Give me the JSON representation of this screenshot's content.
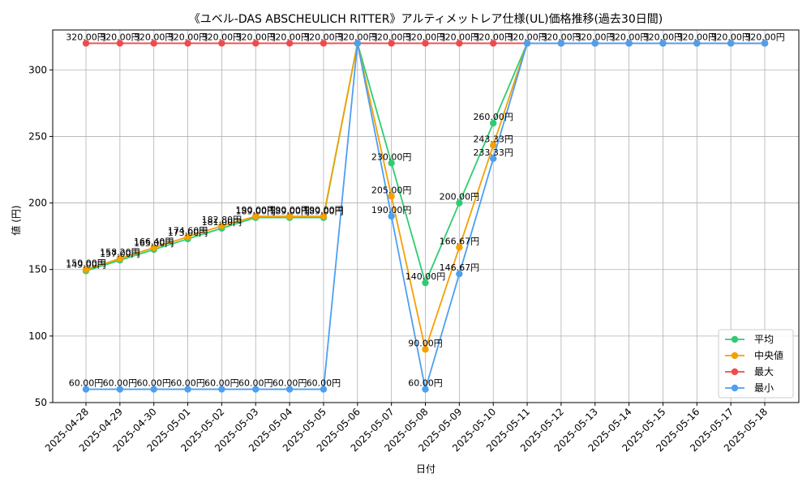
{
  "chart_data": {
    "type": "line",
    "title": "《ユベル-DAS ABSCHEULICH RITTER》アルティメットレア仕様(UL)価格推移(過去30日間)",
    "xlabel": "日付",
    "ylabel": "値 (円)",
    "ylim": [
      50,
      330
    ],
    "yticks": [
      50,
      100,
      150,
      200,
      250,
      300
    ],
    "grid": true,
    "legend_position": "lower-right",
    "categories": [
      "2025-04-28",
      "2025-04-29",
      "2025-04-30",
      "2025-05-01",
      "2025-05-02",
      "2025-05-03",
      "2025-05-04",
      "2025-05-05",
      "2025-05-06",
      "2025-05-07",
      "2025-05-08",
      "2025-05-09",
      "2025-05-10",
      "2025-05-11",
      "2025-05-12",
      "2025-05-13",
      "2025-05-14",
      "2025-05-15",
      "2025-05-16",
      "2025-05-17",
      "2025-05-18"
    ],
    "series": [
      {
        "name": "平均",
        "color": "#2ecc71",
        "values": [
          149,
          157,
          165,
          173,
          181,
          189,
          189,
          189,
          320,
          230,
          140,
          200,
          260,
          320,
          320,
          320,
          320,
          320,
          320,
          320,
          320
        ],
        "label_indices": [
          0,
          1,
          2,
          3,
          4,
          5,
          6,
          7,
          9,
          10,
          11,
          12
        ],
        "labels": [
          "149.00円",
          "157.00円",
          "165.00円",
          "173.00円",
          "181.00円",
          "189.00円",
          "189.00円",
          "189.00円",
          "",
          "230.00円",
          "140.00円",
          "200.00円",
          "260.00円",
          "",
          "",
          "",
          "",
          "",
          "",
          "",
          ""
        ]
      },
      {
        "name": "中央値",
        "color": "#f5a000",
        "values": [
          150,
          158.2,
          166.4,
          174.6,
          182.8,
          190,
          190,
          190,
          320,
          205,
          90,
          166.67,
          243.33,
          320,
          320,
          320,
          320,
          320,
          320,
          320,
          320
        ],
        "label_indices": [
          0,
          1,
          2,
          3,
          4,
          5,
          6,
          7,
          9,
          10,
          11,
          12
        ],
        "labels": [
          "150.00円",
          "158.20円",
          "166.40円",
          "174.60円",
          "182.80円",
          "190.00円",
          "190.00円",
          "190.00円",
          "",
          "205.00円",
          "90.00円",
          "166.67円",
          "243.33円",
          "",
          "",
          "",
          "",
          "",
          "",
          "",
          ""
        ]
      },
      {
        "name": "最大",
        "color": "#f04a4a",
        "values": [
          320,
          320,
          320,
          320,
          320,
          320,
          320,
          320,
          320,
          320,
          320,
          320,
          320,
          320,
          320,
          320,
          320,
          320,
          320,
          320,
          320
        ],
        "label_indices": [
          0,
          1,
          2,
          3,
          4,
          5,
          6,
          7,
          8,
          9,
          10,
          11,
          12,
          13,
          14,
          15,
          16,
          17,
          18,
          19,
          20
        ],
        "labels": [
          "320.00円",
          "320.00円",
          "320.00円",
          "320.00円",
          "320.00円",
          "320.00円",
          "320.00円",
          "320.00円",
          "320.00円",
          "320.00円",
          "320.00円",
          "320.00円",
          "320.00円",
          "320.00円",
          "320.00円",
          "320.00円",
          "320.00円",
          "320.00円",
          "320.00円",
          "320.00円",
          "320.00円"
        ]
      },
      {
        "name": "最小",
        "color": "#4d9ff0",
        "values": [
          60,
          60,
          60,
          60,
          60,
          60,
          60,
          60,
          320,
          190,
          60,
          146.67,
          233.33,
          320,
          320,
          320,
          320,
          320,
          320,
          320,
          320
        ],
        "label_indices": [
          0,
          1,
          2,
          3,
          4,
          5,
          6,
          7,
          9,
          10,
          11,
          12
        ],
        "labels": [
          "60.00円",
          "60.00円",
          "60.00円",
          "60.00円",
          "60.00円",
          "60.00円",
          "60.00円",
          "60.00円",
          "",
          "190.00円",
          "60.00円",
          "146.67円",
          "233.33円",
          "",
          "",
          "",
          "",
          "",
          "",
          "",
          ""
        ]
      }
    ]
  }
}
